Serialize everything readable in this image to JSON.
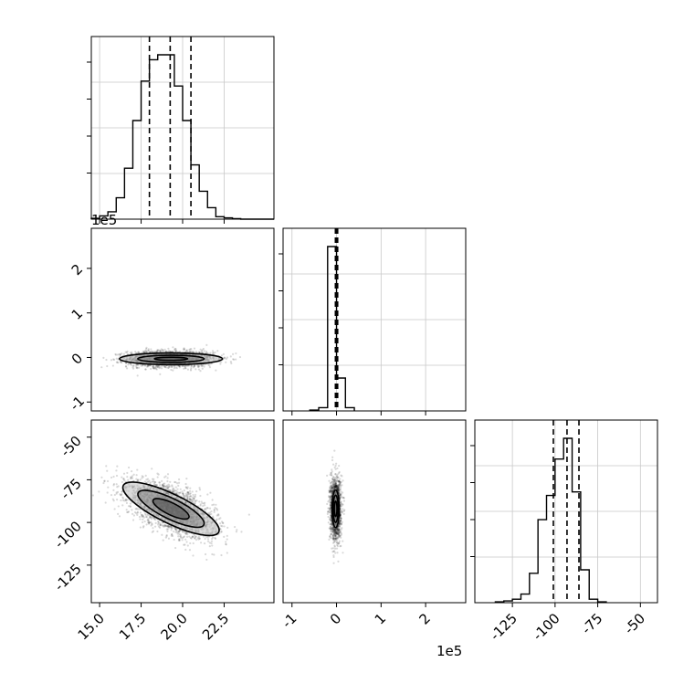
{
  "chart_data": {
    "type": "corner",
    "grid": true,
    "axes": [
      {
        "id": "param1-histogram",
        "type": "histogram",
        "xlim": [
          14.5,
          25.5
        ],
        "quantiles": [
          18.0,
          19.25,
          20.5
        ],
        "bin_edges": [
          14.5,
          15.0,
          15.5,
          16.0,
          16.5,
          17.0,
          17.5,
          18.0,
          18.5,
          19.0,
          19.5,
          20.0,
          20.5,
          21.0,
          21.5,
          22.0,
          22.5,
          23.0,
          23.5,
          24.0,
          24.5,
          25.0,
          25.5
        ],
        "counts": [
          0.005,
          0.02,
          0.045,
          0.13,
          0.31,
          0.6,
          0.84,
          0.97,
          1.0,
          1.0,
          0.81,
          0.6,
          0.33,
          0.17,
          0.07,
          0.015,
          0.008,
          0.003,
          0.0,
          0.0,
          0.0,
          0.0
        ]
      },
      {
        "id": "param2-histogram",
        "type": "histogram",
        "xlim": [
          -120000,
          290000
        ],
        "offset_label": "1e5",
        "xticks": [
          -100000,
          0,
          100000,
          200000
        ],
        "quantiles": [
          -2500,
          0,
          2500
        ],
        "bin_edges": [
          -60000,
          -40000,
          -20000,
          0,
          20000,
          40000
        ],
        "counts": [
          0.005,
          0.02,
          1.0,
          0.2,
          0.02
        ]
      },
      {
        "id": "param3-histogram",
        "type": "histogram",
        "xlim": [
          -147,
          -40
        ],
        "xtick_labels": [
          "-125",
          "-100",
          "-75",
          "-50"
        ],
        "quantiles": [
          -101,
          -93,
          -86
        ],
        "bin_edges": [
          -135,
          -130,
          -125,
          -120,
          -115,
          -110,
          -105,
          -100,
          -95,
          -90,
          -85,
          -80,
          -75,
          -70
        ],
        "counts": [
          0.005,
          0.01,
          0.02,
          0.05,
          0.17,
          0.48,
          0.62,
          0.83,
          0.95,
          0.64,
          0.19,
          0.02,
          0.005
        ]
      },
      {
        "id": "param1-vs-param2",
        "type": "scatter-contour",
        "xlim": [
          14.5,
          25.5
        ],
        "ylim": [
          -120000,
          290000
        ],
        "y_offset_label": "1e5",
        "yticks": [
          -100000,
          0,
          100000,
          200000
        ],
        "ytick_labels": [
          "-1",
          "0",
          "1",
          "2"
        ],
        "center": [
          19.3,
          -3000
        ],
        "contours": [
          [
            1.0,
            3500
          ],
          [
            2.0,
            8000
          ],
          [
            3.1,
            13000
          ]
        ]
      },
      {
        "id": "param1-vs-param3",
        "type": "scatter-contour",
        "xlim": [
          14.5,
          25.5
        ],
        "ylim": [
          -147,
          -40
        ],
        "xtick_labels": [
          "15.0",
          "17.5",
          "20.0",
          "22.5"
        ],
        "ytick_labels": [
          "-125",
          "-100",
          "-75",
          "-50"
        ],
        "center": [
          19.3,
          -92
        ],
        "contours": [
          [
            1.2,
            3.5
          ],
          [
            2.2,
            6.0
          ],
          [
            3.2,
            8.5
          ]
        ],
        "angle_deg": 26
      },
      {
        "id": "param2-vs-param3",
        "type": "scatter-contour",
        "xlim": [
          -120000,
          290000
        ],
        "ylim": [
          -147,
          -40
        ],
        "xtick_labels": [
          "-1",
          "0",
          "1",
          "2"
        ],
        "x_offset_label": "1e5",
        "center": [
          -2000,
          -92
        ],
        "contours": [
          [
            3000,
            4.5
          ],
          [
            5500,
            8.0
          ],
          [
            8000,
            11.0
          ]
        ]
      }
    ]
  }
}
